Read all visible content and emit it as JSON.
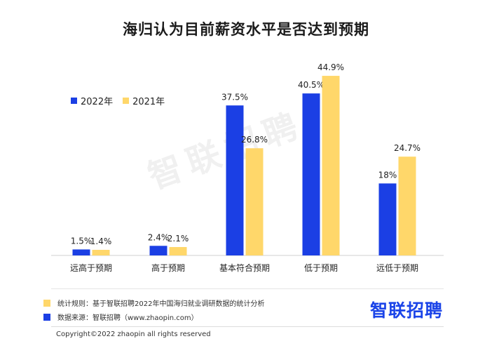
{
  "colors": {
    "series_2022": "#1b3fe4",
    "series_2021": "#ffd76a",
    "brand": "#1b44e8"
  },
  "chart_data": {
    "type": "bar",
    "title": "海归认为目前薪资水平是否达到预期",
    "categories": [
      "远高于预期",
      "高于预期",
      "基本符合预期",
      "低于预期",
      "远低于预期"
    ],
    "series": [
      {
        "name": "2022年",
        "values": [
          1.5,
          2.4,
          37.5,
          40.5,
          18
        ],
        "labels": [
          "1.5%",
          "2.4%",
          "37.5%",
          "40.5%",
          "18%"
        ]
      },
      {
        "name": "2021年",
        "values": [
          1.4,
          2.1,
          26.8,
          44.9,
          24.7
        ],
        "labels": [
          "1.4%",
          "2.1%",
          "26.8%",
          "44.9%",
          "24.7%"
        ]
      }
    ],
    "ylim": [
      0,
      50
    ],
    "legend_position": "top-left",
    "grid": false
  },
  "watermark": "智联招聘",
  "footer": {
    "note1": "统计规则：基于智联招聘2022年中国海归就业调研数据的统计分析",
    "note2": "数据来源：智联招聘（www.zhaopin.com）",
    "brand": "智联招聘",
    "copyright": "Copyright©2022 zhaopin all rights reserved"
  }
}
